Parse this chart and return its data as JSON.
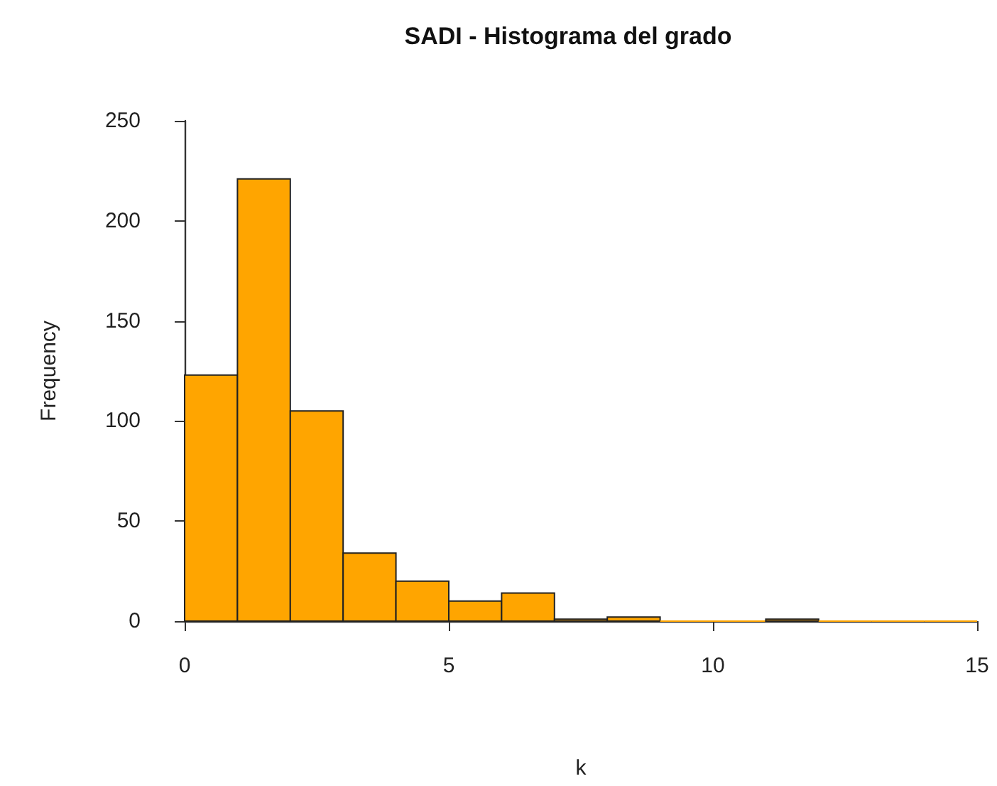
{
  "chart_data": {
    "type": "histogram",
    "title": "SADI - Histograma del grado",
    "xlabel": "k",
    "ylabel": "Frequency",
    "bins": [
      0,
      1,
      2,
      3,
      4,
      5,
      6,
      7,
      8,
      9,
      10,
      11,
      12,
      13,
      14,
      15
    ],
    "values": [
      123,
      221,
      105,
      34,
      20,
      10,
      14,
      1,
      2,
      0,
      0,
      1,
      0,
      0,
      0
    ],
    "color": "#ffa500",
    "xlim": [
      0,
      15
    ],
    "xticks": [
      0,
      5,
      10,
      15
    ],
    "ylim": [
      0,
      250
    ],
    "yticks": [
      0,
      50,
      100,
      150,
      200,
      250
    ],
    "grid": false
  }
}
